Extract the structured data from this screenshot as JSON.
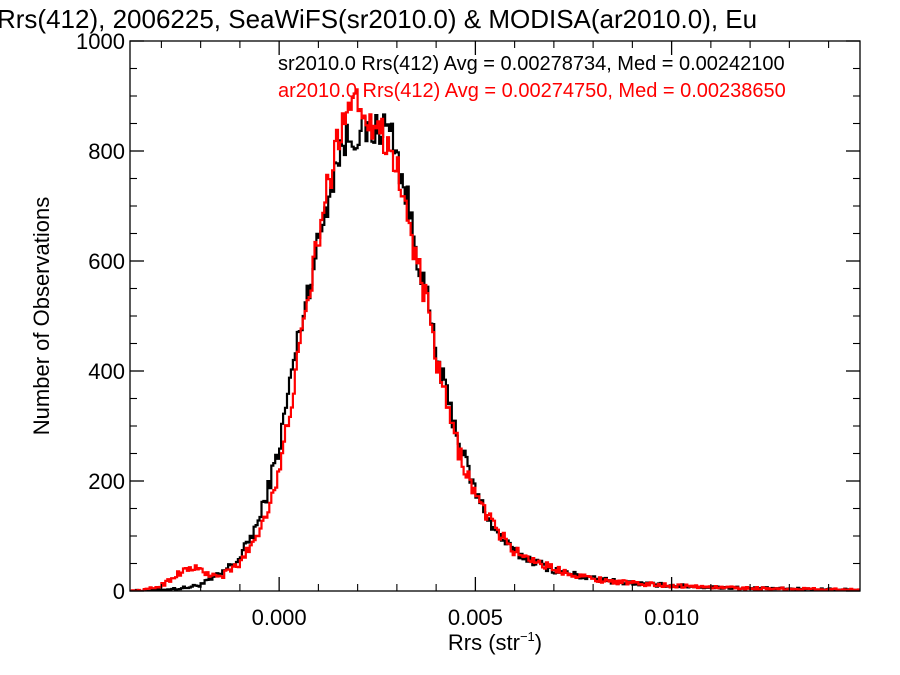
{
  "chart_data": {
    "type": "line",
    "step": true,
    "title": "Rrs(412), 2006225, SeaWiFS(sr2010.0) & MODISA(ar2010.0), Eu",
    "xlabel": "Rrs (str",
    "xlabel_sup": "−1",
    "xlabel_close": ")",
    "ylabel": "Number of Observations",
    "xlim": [
      -0.0038,
      0.0148
    ],
    "ylim": [
      0,
      1000
    ],
    "x_ticks": [
      0.0,
      0.005,
      0.01
    ],
    "x_tick_labels": [
      "0.000",
      "0.005",
      "0.010"
    ],
    "y_ticks": [
      0,
      200,
      400,
      600,
      800,
      1000
    ],
    "y_tick_labels": [
      "0",
      "200",
      "400",
      "600",
      "800",
      "1000"
    ],
    "grid": false,
    "legend_position": "top-right",
    "x": [
      -0.0035,
      -0.003,
      -0.0025,
      -0.0022,
      -0.002,
      -0.0018,
      -0.0015,
      -0.001,
      -0.0005,
      0.0,
      0.0003,
      0.0006,
      0.0009,
      0.0012,
      0.0015,
      0.0017,
      0.0019,
      0.0021,
      0.0023,
      0.0025,
      0.0027,
      0.0029,
      0.0031,
      0.0033,
      0.0035,
      0.0038,
      0.004,
      0.0043,
      0.0046,
      0.005,
      0.0055,
      0.006,
      0.007,
      0.008,
      0.009,
      0.01,
      0.011,
      0.012,
      0.013,
      0.014,
      0.0148
    ],
    "series": [
      {
        "name": "sr2010.0 Rrs(412) Avg = 0.00278734, Med = 0.00242100",
        "color": "#000000",
        "values": [
          0,
          2,
          5,
          8,
          12,
          18,
          30,
          60,
          130,
          260,
          390,
          500,
          600,
          700,
          790,
          820,
          830,
          835,
          830,
          840,
          845,
          830,
          760,
          700,
          620,
          520,
          430,
          350,
          270,
          180,
          110,
          70,
          38,
          22,
          14,
          10,
          7,
          5,
          4,
          3,
          2
        ]
      },
      {
        "name": "ar2010.0 Rrs(412) Avg = 0.00274750, Med = 0.00238650",
        "color": "#ff0000",
        "values": [
          0,
          10,
          35,
          42,
          38,
          30,
          25,
          50,
          110,
          210,
          340,
          470,
          600,
          720,
          820,
          880,
          905,
          880,
          860,
          845,
          820,
          800,
          740,
          670,
          600,
          510,
          420,
          330,
          250,
          175,
          115,
          72,
          40,
          22,
          14,
          10,
          7,
          5,
          4,
          3,
          2
        ]
      }
    ]
  }
}
